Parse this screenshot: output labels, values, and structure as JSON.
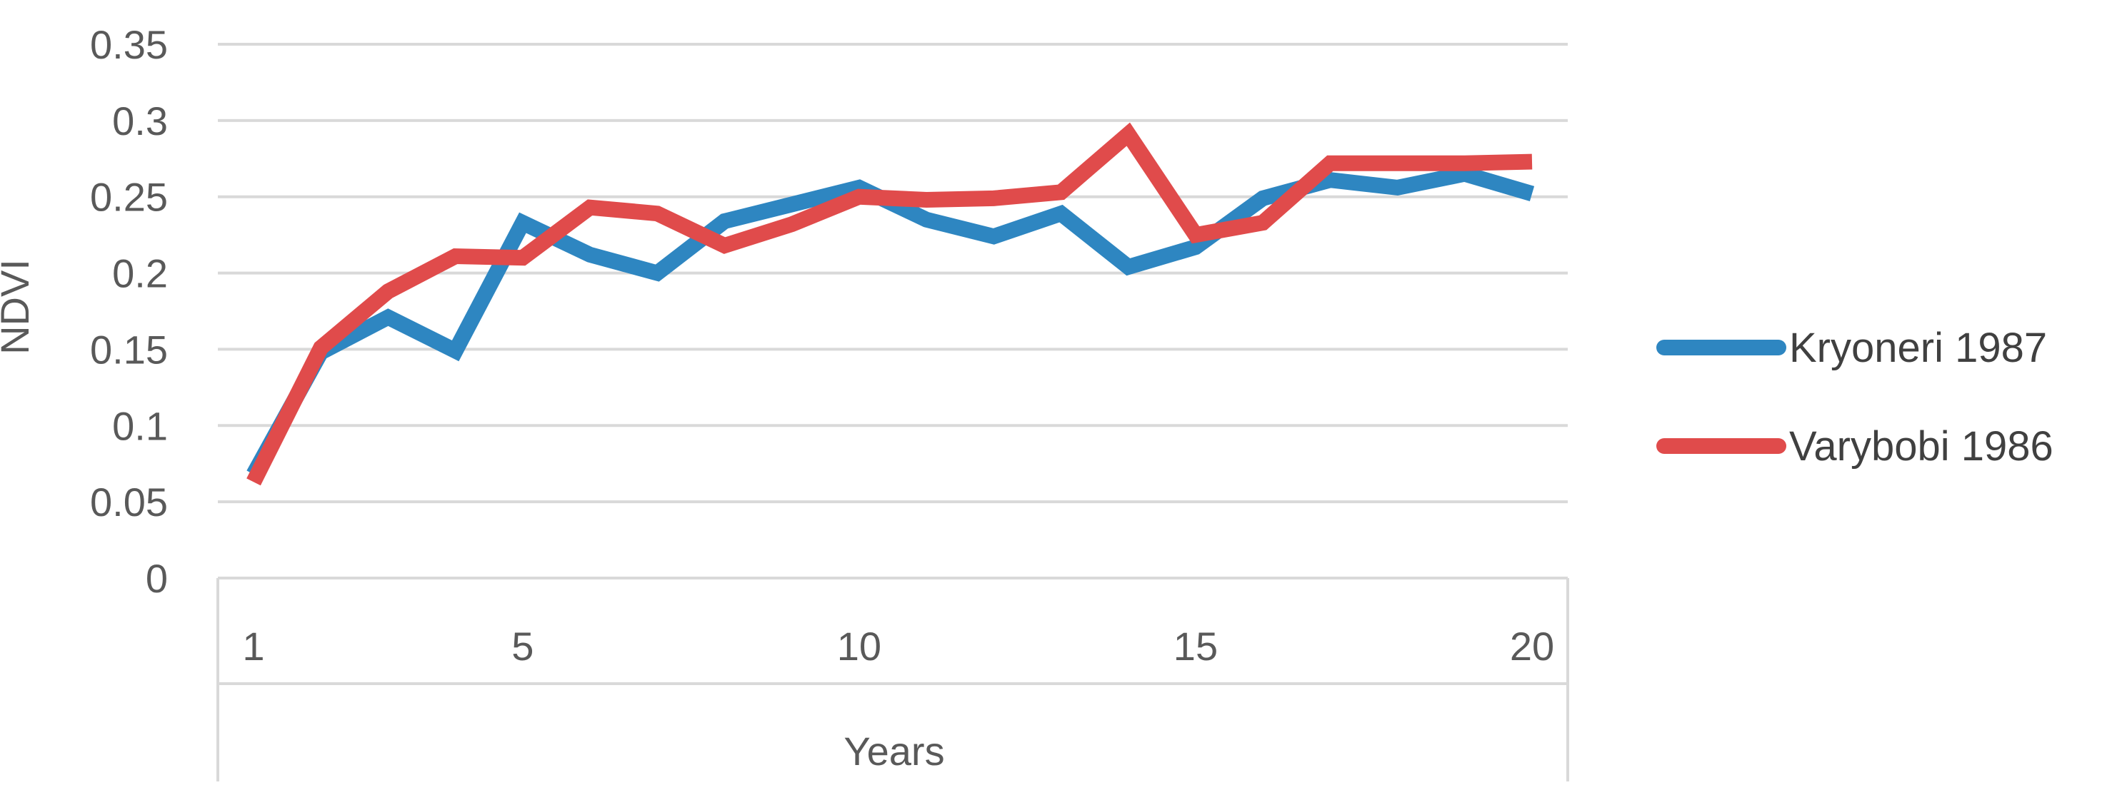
{
  "chart_data": {
    "type": "line",
    "title": "",
    "xlabel": "Years",
    "ylabel": "NDVI",
    "x": [
      1,
      2,
      3,
      4,
      5,
      6,
      7,
      8,
      9,
      10,
      11,
      12,
      13,
      14,
      15,
      16,
      17,
      18,
      19,
      20
    ],
    "x_tick_labels": [
      "1",
      "5",
      "10",
      "15",
      "20"
    ],
    "x_tick_values": [
      1,
      5,
      10,
      15,
      20
    ],
    "y_tick_labels": [
      "0",
      "0.05",
      "0.1",
      "0.15",
      "0.2",
      "0.25",
      "0.3",
      "0.35"
    ],
    "y_tick_values": [
      0,
      0.05,
      0.1,
      0.15,
      0.2,
      0.25,
      0.3,
      0.35
    ],
    "ylim": [
      0,
      0.35
    ],
    "grid": true,
    "legend_position": "right",
    "series": [
      {
        "name": "Kryoneri 1987",
        "color": "#2e86c1",
        "values": [
          0.068,
          0.148,
          0.171,
          0.149,
          0.233,
          0.212,
          0.2,
          0.234,
          0.245,
          0.256,
          0.235,
          0.224,
          0.239,
          0.204,
          0.217,
          0.249,
          0.261,
          0.256,
          0.265,
          0.252
        ]
      },
      {
        "name": "Varybobi 1986",
        "color": "#e04b4b",
        "values": [
          0.063,
          0.151,
          0.188,
          0.211,
          0.21,
          0.243,
          0.239,
          0.218,
          0.232,
          0.25,
          0.248,
          0.249,
          0.253,
          0.291,
          0.225,
          0.233,
          0.272,
          0.272,
          0.272,
          0.273
        ]
      }
    ]
  }
}
